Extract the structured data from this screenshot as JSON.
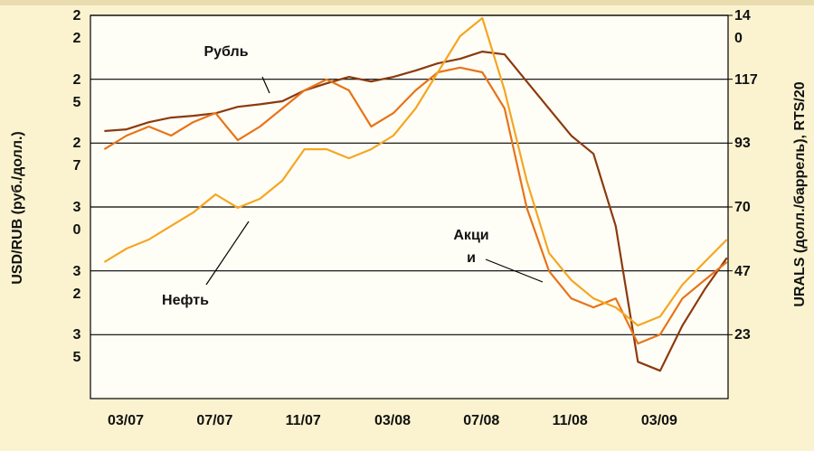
{
  "chart_data": {
    "type": "line",
    "y_label": "USD/RUB (руб./долл.)",
    "y2_label": "URALS (долл./баррель), RTS/20",
    "categories": [
      null,
      "03/07",
      null,
      null,
      null,
      "07/07",
      null,
      null,
      null,
      "11/07",
      null,
      null,
      null,
      "03/08",
      null,
      null,
      null,
      "07/08",
      null,
      null,
      null,
      "11/08",
      null,
      null,
      null,
      "03/09",
      null,
      null,
      null
    ],
    "ylim": [
      37.5,
      22.5
    ],
    "yticks": [
      {
        "value": 22.5,
        "label": "22"
      },
      {
        "value": 25,
        "label": "25"
      },
      {
        "value": 27.5,
        "label": "27"
      },
      {
        "value": 30,
        "label": "30"
      },
      {
        "value": 32.5,
        "label": "32"
      },
      {
        "value": 35,
        "label": "35"
      }
    ],
    "y2lim": [
      0,
      140
    ],
    "y2ticks": [
      140,
      {
        "value": 116.67,
        "label": "117"
      },
      {
        "value": 93.33,
        "label": "93"
      },
      70,
      {
        "value": 46.67,
        "label": "47"
      },
      {
        "value": 23.33,
        "label": "23"
      }
    ],
    "grid": true,
    "series": [
      {
        "name": "Рубль",
        "color": "#8b3a0f",
        "values": [
          27.03,
          26.96,
          26.68,
          26.5,
          26.43,
          26.33,
          26.08,
          25.98,
          25.86,
          25.44,
          25.16,
          24.91,
          25.09,
          24.91,
          24.66,
          24.38,
          24.2,
          23.92,
          24.03,
          25.09,
          26.15,
          27.21,
          27.92,
          30.75,
          36.06,
          36.41,
          34.64,
          33.23,
          31.99
        ]
      },
      {
        "name": "Акции",
        "color": "#e8731a",
        "axis": "y2",
        "values": [
          91.1,
          96.1,
          99.4,
          96.1,
          101.0,
          104.3,
          94.4,
          99.4,
          106.0,
          112.6,
          116.6,
          112.6,
          99.4,
          104.3,
          112.6,
          119.2,
          120.9,
          119.2,
          106.0,
          69.7,
          46.6,
          36.6,
          33.3,
          36.6,
          20.1,
          23.4,
          36.6,
          43.3,
          49.9
        ]
      },
      {
        "name": "Нефть",
        "color": "#f5a623",
        "axis": "y2",
        "values": [
          49.9,
          54.8,
          58.1,
          63.1,
          68.0,
          74.6,
          69.7,
          73.0,
          79.6,
          91.1,
          91.1,
          87.8,
          91.1,
          96.1,
          106.0,
          119.2,
          132.4,
          139.0,
          112.6,
          79.6,
          53.2,
          43.3,
          36.6,
          33.3,
          26.7,
          30.0,
          41.6,
          49.9,
          58.1
        ]
      }
    ]
  }
}
